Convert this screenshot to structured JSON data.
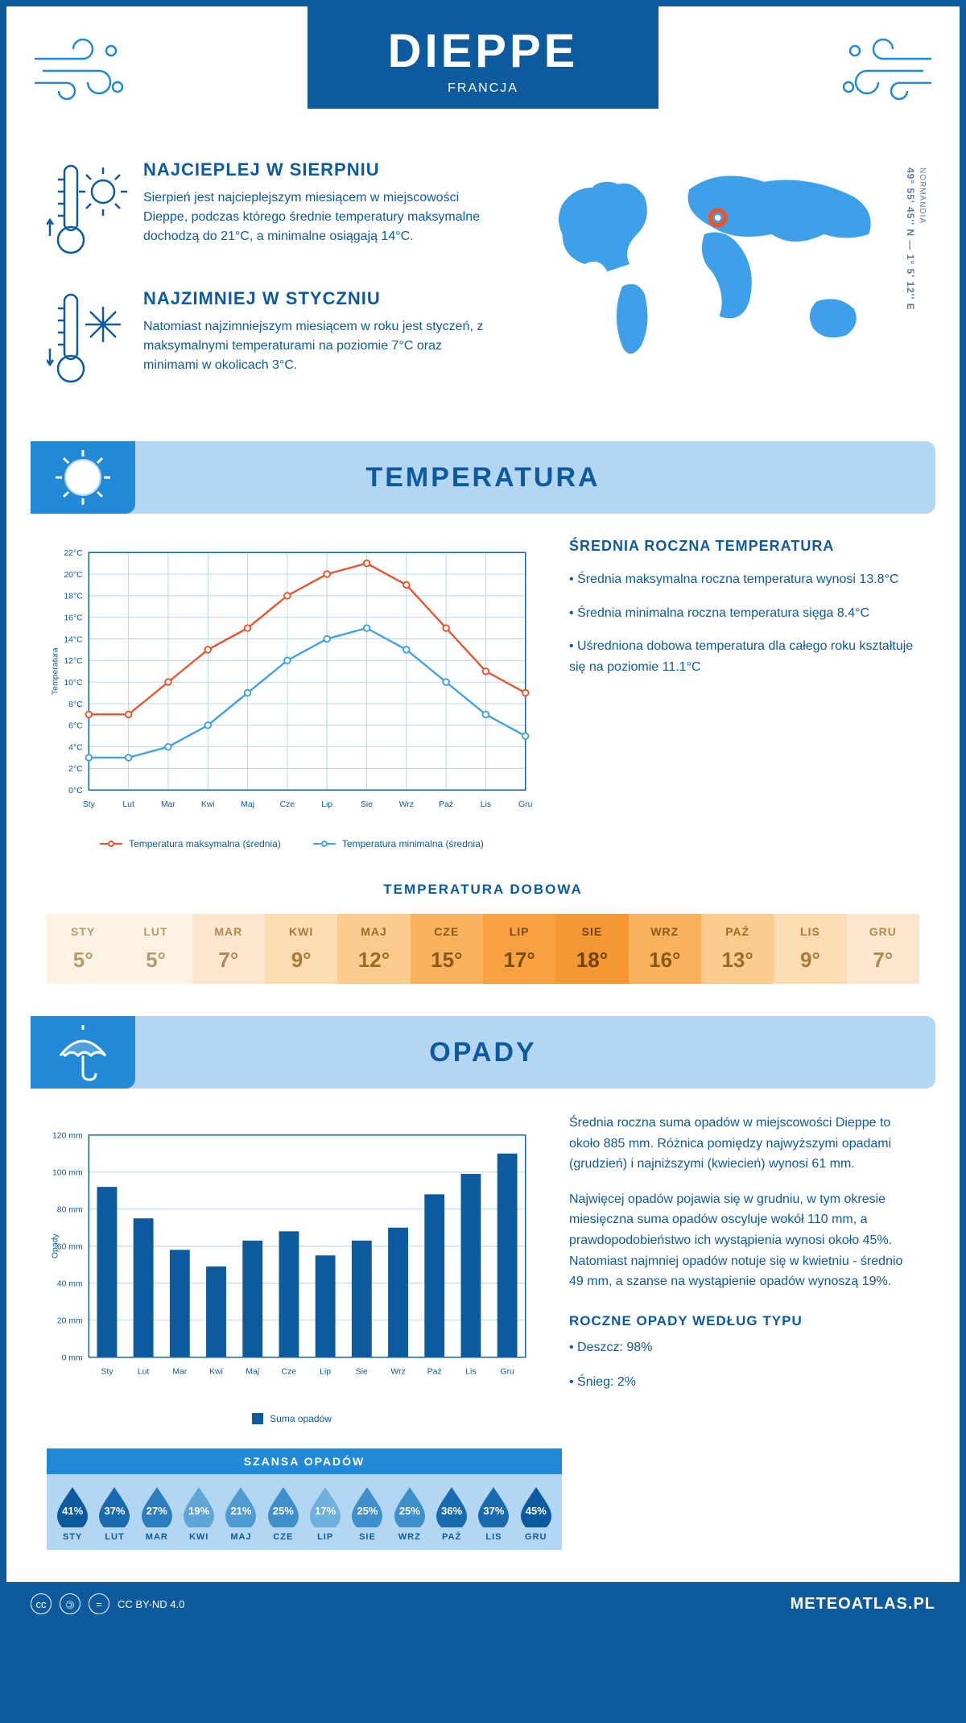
{
  "header": {
    "city": "DIEPPE",
    "country": "FRANCJA"
  },
  "coords": {
    "lat": "49° 55' 45'' N — 1° 5' 12'' E",
    "region": "NORMANDIA"
  },
  "intro": {
    "hot": {
      "title": "NAJCIEPLEJ W SIERPNIU",
      "body": "Sierpień jest najcieplejszym miesiącem w miejscowości Dieppe, podczas którego średnie temperatury maksymalne dochodzą do 21°C, a minimalne osiągają 14°C."
    },
    "cold": {
      "title": "NAJZIMNIEJ W STYCZNIU",
      "body": "Natomiast najzimniejszym miesiącem w roku jest styczeń, z maksymalnymi temperaturami na poziomie 7°C oraz minimami w okolicach 3°C."
    }
  },
  "sections": {
    "temperature": "TEMPERATURA",
    "precipitation": "OPADY"
  },
  "temp_chart": {
    "type": "line",
    "months": [
      "Sty",
      "Lut",
      "Mar",
      "Kwi",
      "Maj",
      "Cze",
      "Lip",
      "Sie",
      "Wrz",
      "Paź",
      "Lis",
      "Gru"
    ],
    "y_label": "Temperatura",
    "ylim": [
      0,
      22
    ],
    "ystep": 2,
    "y_suffix": "°C",
    "series": [
      {
        "name": "Temperatura maksymalna (średnia)",
        "color": "#e8552d",
        "values": [
          7,
          7,
          10,
          13,
          15,
          18,
          20,
          21,
          19,
          15,
          11,
          9
        ]
      },
      {
        "name": "Temperatura minimalna (średnia)",
        "color": "#3ea0e8",
        "values": [
          3,
          3,
          4,
          6,
          9,
          12,
          14,
          15,
          13,
          10,
          7,
          5
        ]
      }
    ],
    "grid_color": "#b8d4e8",
    "axis_color": "#0d5a9e",
    "label_fontsize": 11
  },
  "temp_side": {
    "title": "ŚREDNIA ROCZNA TEMPERATURA",
    "bullets": [
      "• Średnia maksymalna roczna temperatura wynosi 13.8°C",
      "• Średnia minimalna roczna temperatura sięga 8.4°C",
      "• Uśredniona dobowa temperatura dla całego roku kształtuje się na poziomie 11.1°C"
    ]
  },
  "daily_temp": {
    "title": "TEMPERATURA DOBOWA",
    "months": [
      "STY",
      "LUT",
      "MAR",
      "KWI",
      "MAJ",
      "CZE",
      "LIP",
      "SIE",
      "WRZ",
      "PAŹ",
      "LIS",
      "GRU"
    ],
    "values": [
      "5°",
      "5°",
      "7°",
      "9°",
      "12°",
      "15°",
      "17°",
      "18°",
      "16°",
      "13°",
      "9°",
      "7°"
    ],
    "cell_bg": [
      "#fcf3e4",
      "#fcf3e4",
      "#fce6cd",
      "#fcdcb3",
      "#fbcc8e",
      "#f9b35f",
      "#f7a143",
      "#f59733",
      "#f9b35f",
      "#fbcc8e",
      "#fcdcb3",
      "#fce6cd"
    ],
    "cell_fg": [
      "#b89a6a",
      "#b89a6a",
      "#b08a50",
      "#a87a3a",
      "#9e6a28",
      "#8c5818",
      "#7a4a10",
      "#6e420c",
      "#8c5818",
      "#9e6a28",
      "#a87a3a",
      "#b08a50"
    ]
  },
  "precip_chart": {
    "type": "bar",
    "months": [
      "Sty",
      "Lut",
      "Mar",
      "Kwi",
      "Maj",
      "Cze",
      "Lip",
      "Sie",
      "Wrz",
      "Paź",
      "Lis",
      "Gru"
    ],
    "values": [
      92,
      75,
      58,
      49,
      63,
      68,
      55,
      63,
      70,
      88,
      99,
      110
    ],
    "y_label": "Opady",
    "ylim": [
      0,
      120
    ],
    "ystep": 20,
    "y_suffix": " mm",
    "bar_color": "#0d5a9e",
    "grid_color": "#b8d4e8",
    "legend": "Suma opadów"
  },
  "precip_side": {
    "p1": "Średnia roczna suma opadów w miejscowości Dieppe to około 885 mm. Różnica pomiędzy najwyższymi opadami (grudzień) i najniższymi (kwiecień) wynosi 61 mm.",
    "p2": "Najwięcej opadów pojawia się w grudniu, w tym okresie miesięczna suma opadów oscyluje wokół 110 mm, a prawdopodobieństwo ich wystąpienia wynosi około 45%. Natomiast najmniej opadów notuje się w kwietniu - średnio 49 mm, a szanse na wystąpienie opadów wynoszą 19%.",
    "type_title": "ROCZNE OPADY WEDŁUG TYPU",
    "type_bullets": [
      "• Deszcz: 98%",
      "• Śnieg: 2%"
    ]
  },
  "chance": {
    "title": "SZANSA OPADÓW",
    "months": [
      "STY",
      "LUT",
      "MAR",
      "KWI",
      "MAJ",
      "CZE",
      "LIP",
      "SIE",
      "WRZ",
      "PAŹ",
      "LIS",
      "GRU"
    ],
    "values": [
      "41%",
      "37%",
      "27%",
      "19%",
      "21%",
      "25%",
      "17%",
      "25%",
      "25%",
      "36%",
      "37%",
      "45%"
    ],
    "colors": [
      "#0d5a9e",
      "#1a6ab0",
      "#2b7dc0",
      "#5ea6d8",
      "#4e9cd2",
      "#3e90cc",
      "#6eb0de",
      "#3e90cc",
      "#3e90cc",
      "#1a6ab0",
      "#1a6ab0",
      "#0d5a9e"
    ]
  },
  "footer": {
    "license": "CC BY-ND 4.0",
    "brand": "METEOATLAS.PL"
  },
  "colors": {
    "primary": "#0d5a9e",
    "accent": "#2289d6",
    "light": "#b3d7f2"
  }
}
